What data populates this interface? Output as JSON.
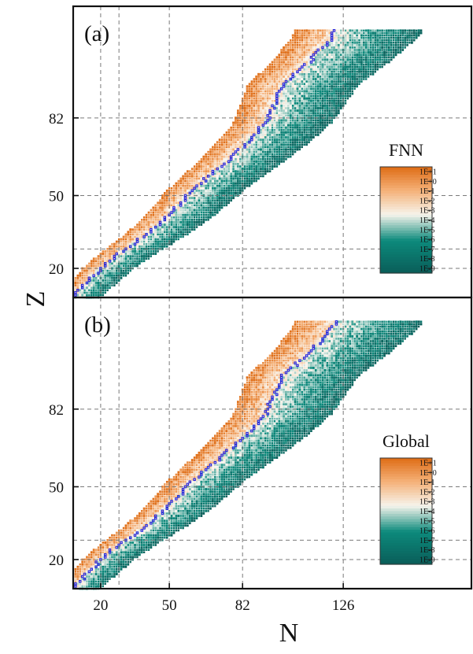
{
  "chart_data": [
    {
      "type": "heatmap",
      "panel_label": "(a)",
      "colorbar_title": "FNN",
      "colorbar_ticks": [
        "1E+1",
        "1E+0",
        "1E-1",
        "1E-2",
        "1E-3",
        "1E-4",
        "1E-5",
        "1E-6",
        "1E-7",
        "1E-8",
        "1E-9"
      ],
      "colorbar_scale": "log",
      "ylabel": "Z",
      "yticks": [
        20,
        50,
        82
      ],
      "xlim": [
        8,
        182
      ],
      "ylim": [
        8,
        128
      ],
      "magic_numbers_x": [
        20,
        28,
        50,
        82,
        126
      ],
      "magic_numbers_y": [
        20,
        28,
        50,
        82
      ],
      "grid": "dashed at magic numbers",
      "stable_nuclei_marker": "blue open squares"
    },
    {
      "type": "heatmap",
      "panel_label": "(b)",
      "colorbar_title": "Global",
      "colorbar_ticks": [
        "1E+1",
        "1E+0",
        "1E-1",
        "1E-2",
        "1E-3",
        "1E-4",
        "1E-5",
        "1E-6",
        "1E-7",
        "1E-8",
        "1E-9"
      ],
      "colorbar_scale": "log",
      "xlabel": "N",
      "ylabel": "Z",
      "xticks": [
        20,
        50,
        82,
        126
      ],
      "yticks": [
        20,
        50,
        82
      ],
      "xlim": [
        8,
        182
      ],
      "ylim": [
        8,
        128
      ],
      "magic_numbers_x": [
        20,
        28,
        50,
        82,
        126
      ],
      "magic_numbers_y": [
        20,
        28,
        50,
        82
      ],
      "grid": "dashed at magic numbers",
      "stable_nuclei_marker": "blue open squares"
    }
  ],
  "colors": {
    "high": "#e0701a",
    "mid": "#f6f4ec",
    "low": "#0c8a7c",
    "lowest": "#0a5f5a",
    "stable": "#2323dc",
    "grid": "#7a7a7a"
  }
}
